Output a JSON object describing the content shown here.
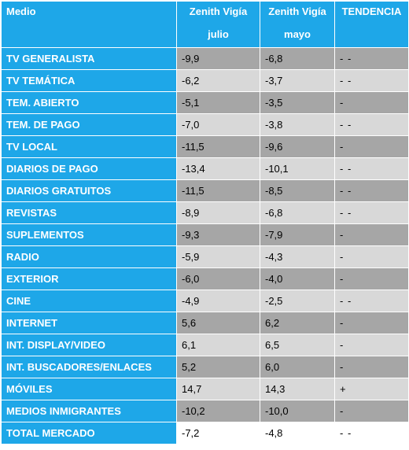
{
  "header": {
    "medio": "Medio",
    "col1_line1": "Zenith Vigía",
    "col1_line2": "julio",
    "col2_line1": "Zenith Vigía",
    "col2_line2": "mayo",
    "col3": "TENDENCIA"
  },
  "rows": [
    {
      "medio": "TV GENERALISTA",
      "julio": "-9,9",
      "mayo": "-6,8",
      "tendencia": "- -"
    },
    {
      "medio": "TV TEMÁTICA",
      "julio": "-6,2",
      "mayo": "-3,7",
      "tendencia": "- -"
    },
    {
      "medio": "TEM. ABIERTO",
      "julio": "-5,1",
      "mayo": "-3,5",
      "tendencia": "-"
    },
    {
      "medio": "TEM. DE PAGO",
      "julio": "-7,0",
      "mayo": "-3,8",
      "tendencia": "- -"
    },
    {
      "medio": "TV LOCAL",
      "julio": "-11,5",
      "mayo": "-9,6",
      "tendencia": "-"
    },
    {
      "medio": "DIARIOS DE PAGO",
      "julio": "-13,4",
      "mayo": "-10,1",
      "tendencia": "- -"
    },
    {
      "medio": "DIARIOS GRATUITOS",
      "julio": "-11,5",
      "mayo": "-8,5",
      "tendencia": " - -"
    },
    {
      "medio": "REVISTAS",
      "julio": "-8,9",
      "mayo": "-6,8",
      "tendencia": " - -"
    },
    {
      "medio": "SUPLEMENTOS",
      "julio": "-9,3",
      "mayo": "-7,9",
      "tendencia": "-"
    },
    {
      "medio": "RADIO",
      "julio": "-5,9",
      "mayo": "-4,3",
      "tendencia": " -"
    },
    {
      "medio": "EXTERIOR",
      "julio": "-6,0",
      "mayo": "-4,0",
      "tendencia": "-"
    },
    {
      "medio": "CINE",
      "julio": "-4,9",
      "mayo": "-2,5",
      "tendencia": "- -"
    },
    {
      "medio": "INTERNET",
      "julio": "5,6",
      "mayo": "6,2",
      "tendencia": " -"
    },
    {
      "medio": "INT. DISPLAY/VIDEO",
      "julio": "6,1",
      "mayo": "6,5",
      "tendencia": " -"
    },
    {
      "medio": "INT. BUSCADORES/ENLACES",
      "julio": "5,2",
      "mayo": "6,0",
      "tendencia": "-"
    },
    {
      "medio": "MÓVILES",
      "julio": "14,7",
      "mayo": "14,3",
      "tendencia": "+"
    },
    {
      "medio": "MEDIOS INMIGRANTES",
      "julio": "-10,2",
      "mayo": "-10,0",
      "tendencia": "-"
    },
    {
      "medio": "TOTAL MERCADO",
      "julio": "-7,2",
      "mayo": "-4,8",
      "tendencia": " - -"
    }
  ],
  "colors": {
    "header_blue": "#1ea7e8",
    "row_light": "#d8d8d8",
    "row_dark": "#a6a6a6"
  }
}
